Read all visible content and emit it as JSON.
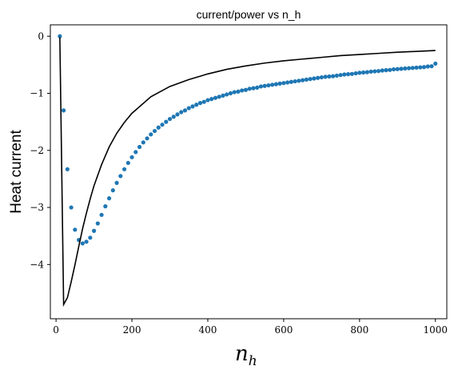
{
  "chart_data": {
    "type": "line",
    "title": "current/power vs n_h",
    "xlabel": "n",
    "xlabel_sub": "h",
    "ylabel": "Heat current",
    "xlim": [
      -15,
      1030
    ],
    "ylim": [
      -4.95,
      0.2
    ],
    "x_ticks": [
      0,
      200,
      400,
      600,
      800,
      1000
    ],
    "y_ticks": [
      0,
      -1,
      -2,
      -3,
      -4
    ],
    "x_tick_labels": [
      "0",
      "200",
      "400",
      "600",
      "800",
      "1000"
    ],
    "y_tick_labels": [
      "0",
      "−1",
      "−2",
      "−3",
      "−4"
    ],
    "grid": false,
    "legend": "none",
    "series": [
      {
        "style": "scatter",
        "color": "#1f77b4",
        "points": [
          [
            10,
            0
          ],
          [
            20,
            -1.3
          ],
          [
            30,
            -2.33
          ],
          [
            40,
            -3.0
          ],
          [
            50,
            -3.39
          ],
          [
            60,
            -3.57
          ],
          [
            70,
            -3.63
          ],
          [
            80,
            -3.6
          ],
          [
            90,
            -3.53
          ],
          [
            100,
            -3.41
          ],
          [
            110,
            -3.28
          ],
          [
            120,
            -3.13
          ],
          [
            130,
            -2.98
          ],
          [
            140,
            -2.84
          ],
          [
            150,
            -2.7
          ],
          [
            160,
            -2.57
          ],
          [
            170,
            -2.45
          ],
          [
            180,
            -2.33
          ],
          [
            190,
            -2.22
          ],
          [
            200,
            -2.12
          ],
          [
            210,
            -2.03
          ],
          [
            220,
            -1.94
          ],
          [
            230,
            -1.86
          ],
          [
            240,
            -1.79
          ],
          [
            250,
            -1.72
          ],
          [
            260,
            -1.66
          ],
          [
            270,
            -1.6
          ],
          [
            280,
            -1.55
          ],
          [
            290,
            -1.5
          ],
          [
            300,
            -1.45
          ],
          [
            310,
            -1.41
          ],
          [
            320,
            -1.37
          ],
          [
            330,
            -1.33
          ],
          [
            340,
            -1.3
          ],
          [
            350,
            -1.26
          ],
          [
            360,
            -1.23
          ],
          [
            370,
            -1.2
          ],
          [
            380,
            -1.17
          ],
          [
            390,
            -1.15
          ],
          [
            400,
            -1.12
          ],
          [
            410,
            -1.1
          ],
          [
            420,
            -1.08
          ],
          [
            430,
            -1.06
          ],
          [
            440,
            -1.04
          ],
          [
            450,
            -1.02
          ],
          [
            460,
            -1.0
          ],
          [
            470,
            -0.98
          ],
          [
            480,
            -0.97
          ],
          [
            490,
            -0.95
          ],
          [
            500,
            -0.94
          ],
          [
            510,
            -0.92
          ],
          [
            520,
            -0.91
          ],
          [
            530,
            -0.9
          ],
          [
            540,
            -0.88
          ],
          [
            550,
            -0.87
          ],
          [
            560,
            -0.86
          ],
          [
            570,
            -0.85
          ],
          [
            580,
            -0.84
          ],
          [
            590,
            -0.83
          ],
          [
            600,
            -0.82
          ],
          [
            610,
            -0.81
          ],
          [
            620,
            -0.8
          ],
          [
            630,
            -0.79
          ],
          [
            640,
            -0.78
          ],
          [
            650,
            -0.77
          ],
          [
            660,
            -0.76
          ],
          [
            670,
            -0.75
          ],
          [
            680,
            -0.74
          ],
          [
            690,
            -0.73
          ],
          [
            700,
            -0.72
          ],
          [
            710,
            -0.71
          ],
          [
            720,
            -0.705
          ],
          [
            730,
            -0.7
          ],
          [
            740,
            -0.69
          ],
          [
            750,
            -0.68
          ],
          [
            760,
            -0.67
          ],
          [
            770,
            -0.665
          ],
          [
            780,
            -0.66
          ],
          [
            790,
            -0.65
          ],
          [
            800,
            -0.64
          ],
          [
            810,
            -0.635
          ],
          [
            820,
            -0.63
          ],
          [
            830,
            -0.62
          ],
          [
            840,
            -0.615
          ],
          [
            850,
            -0.61
          ],
          [
            860,
            -0.6
          ],
          [
            870,
            -0.595
          ],
          [
            880,
            -0.59
          ],
          [
            890,
            -0.58
          ],
          [
            900,
            -0.575
          ],
          [
            910,
            -0.57
          ],
          [
            920,
            -0.565
          ],
          [
            930,
            -0.56
          ],
          [
            940,
            -0.555
          ],
          [
            950,
            -0.55
          ],
          [
            960,
            -0.545
          ],
          [
            970,
            -0.54
          ],
          [
            980,
            -0.53
          ],
          [
            990,
            -0.525
          ],
          [
            1000,
            -0.48
          ]
        ]
      },
      {
        "style": "line",
        "color": "#000000",
        "points": [
          [
            10,
            -0.02
          ],
          [
            20,
            -4.7
          ],
          [
            30,
            -4.58
          ],
          [
            40,
            -4.3
          ],
          [
            50,
            -4.0
          ],
          [
            60,
            -3.68
          ],
          [
            70,
            -3.37
          ],
          [
            80,
            -3.1
          ],
          [
            90,
            -2.85
          ],
          [
            100,
            -2.62
          ],
          [
            120,
            -2.25
          ],
          [
            140,
            -1.94
          ],
          [
            160,
            -1.7
          ],
          [
            180,
            -1.51
          ],
          [
            200,
            -1.35
          ],
          [
            250,
            -1.06
          ],
          [
            300,
            -0.88
          ],
          [
            350,
            -0.76
          ],
          [
            400,
            -0.66
          ],
          [
            450,
            -0.58
          ],
          [
            500,
            -0.52
          ],
          [
            550,
            -0.47
          ],
          [
            600,
            -0.43
          ],
          [
            650,
            -0.4
          ],
          [
            700,
            -0.37
          ],
          [
            750,
            -0.34
          ],
          [
            800,
            -0.32
          ],
          [
            850,
            -0.3
          ],
          [
            900,
            -0.28
          ],
          [
            950,
            -0.265
          ],
          [
            1000,
            -0.25
          ]
        ]
      }
    ]
  }
}
